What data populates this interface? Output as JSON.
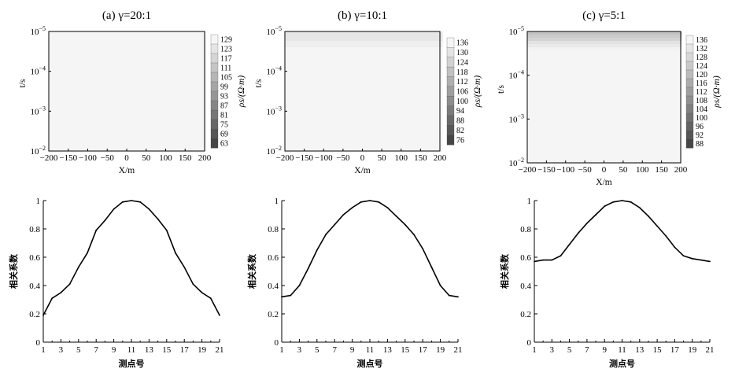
{
  "chart_data": [
    {
      "type": "heatmap",
      "title": "(a) γ=20:1",
      "xlabel": "X/m",
      "ylabel": "t/s",
      "xlim": [
        -200,
        200
      ],
      "x_ticks": [
        "−200",
        "−150",
        "−100",
        "−50",
        "0",
        "50",
        "100",
        "150",
        "200"
      ],
      "y_scale": "log",
      "ylim": [
        1e-05,
        0.01
      ],
      "y_tick_labels": [
        [
          "10",
          "−5"
        ],
        [
          "10",
          "−4"
        ],
        [
          "10",
          "−3"
        ],
        [
          "10",
          "−2"
        ]
      ],
      "colorbar": {
        "label": "ρs/(Ω·m)",
        "ticks": [
          "129",
          "123",
          "117",
          "111",
          "105",
          "99",
          "93",
          "87",
          "81",
          "75",
          "69",
          "63"
        ],
        "min": 63,
        "max": 129
      },
      "field": {
        "background": 129,
        "min": 63,
        "center_x": 0,
        "center_log_t": -3.35,
        "sigma_x": 65,
        "sigma_t": 0.35
      }
    },
    {
      "type": "heatmap",
      "title": "(b) γ=10:1",
      "xlabel": "X/m",
      "ylabel": "t/s",
      "xlim": [
        -200,
        200
      ],
      "x_ticks": [
        "−200",
        "−150",
        "−100",
        "−50",
        "0",
        "50",
        "100",
        "150",
        "200"
      ],
      "y_scale": "log",
      "ylim": [
        1e-05,
        0.01
      ],
      "y_tick_labels": [
        [
          "10",
          "−5"
        ],
        [
          "10",
          "−4"
        ],
        [
          "10",
          "−3"
        ],
        [
          "10",
          "−2"
        ]
      ],
      "colorbar": {
        "label": "ρs/(Ω·m)",
        "ticks": [
          "136",
          "130",
          "124",
          "118",
          "112",
          "106",
          "100",
          "94",
          "88",
          "82",
          "76"
        ],
        "min": 76,
        "max": 136
      },
      "field": {
        "background": 122,
        "min": 76,
        "center_x": -5,
        "center_log_t": -3.45,
        "sigma_x": 70,
        "sigma_t": 0.32
      }
    },
    {
      "type": "heatmap",
      "title": "(c) γ=5:1",
      "xlabel": "X/m",
      "ylabel": "t/s",
      "xlim": [
        -200,
        200
      ],
      "x_ticks": [
        "−200",
        "−150",
        "−100",
        "−50",
        "0",
        "50",
        "100",
        "150",
        "200"
      ],
      "y_scale": "log",
      "ylim": [
        1e-05,
        0.01
      ],
      "y_tick_labels": [
        [
          "10",
          "−5"
        ],
        [
          "10",
          "−4"
        ],
        [
          "10",
          "−3"
        ],
        [
          "10",
          "−2"
        ]
      ],
      "colorbar": {
        "label": "ρs/(Ω·m)",
        "ticks": [
          "136",
          "132",
          "128",
          "124",
          "120",
          "116",
          "112",
          "108",
          "104",
          "100",
          "96",
          "92",
          "88"
        ],
        "min": 88,
        "max": 136
      },
      "field": {
        "background": 108,
        "min": 88,
        "center_x": 0,
        "center_log_t": -3.7,
        "sigma_x": 85,
        "sigma_t": 0.38
      }
    },
    {
      "type": "line",
      "xlabel": "测点号",
      "ylabel": "相关系数",
      "x": [
        1,
        2,
        3,
        4,
        5,
        6,
        7,
        8,
        9,
        10,
        11,
        12,
        13,
        14,
        15,
        16,
        17,
        18,
        19,
        20,
        21
      ],
      "x_ticks": [
        1,
        3,
        5,
        7,
        9,
        11,
        13,
        15,
        17,
        19,
        21
      ],
      "y": [
        0.19,
        0.31,
        0.35,
        0.41,
        0.53,
        0.63,
        0.79,
        0.86,
        0.94,
        0.99,
        1.0,
        0.99,
        0.94,
        0.87,
        0.79,
        0.63,
        0.53,
        0.41,
        0.35,
        0.31,
        0.19
      ],
      "ylim": [
        0,
        1
      ],
      "y_ticks": [
        "0",
        "0.2",
        "0.4",
        "0.6",
        "0.8",
        "1"
      ]
    },
    {
      "type": "line",
      "xlabel": "测点号",
      "ylabel": "相关系数",
      "x": [
        1,
        2,
        3,
        4,
        5,
        6,
        7,
        8,
        9,
        10,
        11,
        12,
        13,
        14,
        15,
        16,
        17,
        18,
        19,
        20,
        21
      ],
      "x_ticks": [
        1,
        3,
        5,
        7,
        9,
        11,
        13,
        15,
        17,
        19,
        21
      ],
      "y": [
        0.32,
        0.33,
        0.4,
        0.52,
        0.65,
        0.76,
        0.83,
        0.9,
        0.95,
        0.99,
        1.0,
        0.99,
        0.95,
        0.89,
        0.83,
        0.76,
        0.66,
        0.53,
        0.4,
        0.33,
        0.32
      ],
      "ylim": [
        0,
        1
      ],
      "y_ticks": [
        "0",
        "0.2",
        "0.4",
        "0.6",
        "0.8",
        "1"
      ]
    },
    {
      "type": "line",
      "xlabel": "测点号",
      "ylabel": "相关系数",
      "x": [
        1,
        2,
        3,
        4,
        5,
        6,
        7,
        8,
        9,
        10,
        11,
        12,
        13,
        14,
        15,
        16,
        17,
        18,
        19,
        20,
        21
      ],
      "x_ticks": [
        1,
        3,
        5,
        7,
        9,
        11,
        13,
        15,
        17,
        19,
        21
      ],
      "y": [
        0.57,
        0.58,
        0.58,
        0.61,
        0.69,
        0.77,
        0.84,
        0.9,
        0.96,
        0.99,
        1.0,
        0.99,
        0.95,
        0.89,
        0.82,
        0.75,
        0.67,
        0.61,
        0.59,
        0.58,
        0.57
      ],
      "ylim": [
        0,
        1
      ],
      "y_ticks": [
        "0",
        "0.2",
        "0.4",
        "0.6",
        "0.8",
        "1"
      ]
    }
  ]
}
